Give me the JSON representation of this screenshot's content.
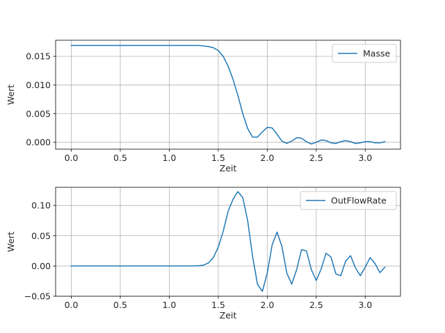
{
  "chart_data": [
    {
      "type": "line",
      "xlabel": "Zeit",
      "ylabel": "Wert",
      "xlim": [
        -0.16,
        3.36
      ],
      "ylim": [
        -0.0012,
        0.0178
      ],
      "xticks": [
        0.0,
        0.5,
        1.0,
        1.5,
        2.0,
        2.5,
        3.0
      ],
      "xtick_labels": [
        "0.0",
        "0.5",
        "1.0",
        "1.5",
        "2.0",
        "2.5",
        "3.0"
      ],
      "yticks": [
        0.0,
        0.005,
        0.01,
        0.015
      ],
      "ytick_labels": [
        "0.000",
        "0.005",
        "0.010",
        "0.015"
      ],
      "grid": true,
      "legend_position": "top-right",
      "series": [
        {
          "name": "Masse",
          "color": "#1f77b4",
          "x": [
            0.0,
            0.05,
            0.1,
            0.15,
            0.2,
            0.25,
            0.3,
            0.35,
            0.4,
            0.45,
            0.5,
            0.55,
            0.6,
            0.65,
            0.7,
            0.75,
            0.8,
            0.85,
            0.9,
            0.95,
            1.0,
            1.05,
            1.1,
            1.15,
            1.2,
            1.25,
            1.3,
            1.35,
            1.4,
            1.45,
            1.5,
            1.55,
            1.6,
            1.65,
            1.7,
            1.75,
            1.8,
            1.85,
            1.9,
            1.95,
            2.0,
            2.05,
            2.1,
            2.15,
            2.2,
            2.25,
            2.3,
            2.35,
            2.4,
            2.45,
            2.5,
            2.55,
            2.6,
            2.65,
            2.7,
            2.75,
            2.8,
            2.85,
            2.9,
            2.95,
            3.0,
            3.05,
            3.1,
            3.15,
            3.2
          ],
          "y": [
            0.0169,
            0.0169,
            0.0169,
            0.0169,
            0.0169,
            0.0169,
            0.0169,
            0.0169,
            0.0169,
            0.0169,
            0.0169,
            0.0169,
            0.0169,
            0.0169,
            0.0169,
            0.0169,
            0.0169,
            0.0169,
            0.0169,
            0.0169,
            0.0169,
            0.0169,
            0.0169,
            0.0169,
            0.0169,
            0.0169,
            0.0169,
            0.0168,
            0.0167,
            0.0165,
            0.016,
            0.015,
            0.0133,
            0.011,
            0.0082,
            0.005,
            0.0024,
            0.0009,
            0.0009,
            0.0018,
            0.0026,
            0.0025,
            0.0014,
            0.0002,
            -0.0002,
            0.0002,
            0.0008,
            0.0007,
            0.0001,
            -0.0003,
            0.0,
            0.0004,
            0.0003,
            -0.0001,
            -0.0002,
            0.0001,
            0.0003,
            0.0001,
            -0.0002,
            -0.0001,
            0.0001,
            0.0001,
            -0.0001,
            -0.0001,
            0.0001
          ]
        }
      ]
    },
    {
      "type": "line",
      "xlabel": "Zeit",
      "ylabel": "Wert",
      "xlim": [
        -0.16,
        3.36
      ],
      "ylim": [
        -0.05,
        0.13
      ],
      "xticks": [
        0.0,
        0.5,
        1.0,
        1.5,
        2.0,
        2.5,
        3.0
      ],
      "xtick_labels": [
        "0.0",
        "0.5",
        "1.0",
        "1.5",
        "2.0",
        "2.5",
        "3.0"
      ],
      "yticks": [
        -0.05,
        0.0,
        0.05,
        0.1
      ],
      "ytick_labels": [
        "−0.05",
        "0.00",
        "0.05",
        "0.10"
      ],
      "grid": true,
      "legend_position": "top-right",
      "series": [
        {
          "name": "OutFlowRate",
          "color": "#1f77b4",
          "x": [
            0.0,
            0.05,
            0.1,
            0.15,
            0.2,
            0.25,
            0.3,
            0.35,
            0.4,
            0.45,
            0.5,
            0.55,
            0.6,
            0.65,
            0.7,
            0.75,
            0.8,
            0.85,
            0.9,
            0.95,
            1.0,
            1.05,
            1.1,
            1.15,
            1.2,
            1.25,
            1.3,
            1.35,
            1.4,
            1.45,
            1.5,
            1.55,
            1.6,
            1.65,
            1.7,
            1.75,
            1.8,
            1.85,
            1.9,
            1.95,
            2.0,
            2.05,
            2.1,
            2.15,
            2.2,
            2.25,
            2.3,
            2.35,
            2.4,
            2.45,
            2.5,
            2.55,
            2.6,
            2.65,
            2.7,
            2.75,
            2.8,
            2.85,
            2.9,
            2.95,
            3.0,
            3.05,
            3.1,
            3.15,
            3.2
          ],
          "y": [
            0.0,
            0.0,
            0.0,
            0.0,
            0.0,
            0.0,
            0.0,
            0.0,
            0.0,
            0.0,
            0.0,
            0.0,
            0.0,
            0.0,
            0.0,
            0.0,
            0.0,
            0.0,
            0.0,
            0.0,
            0.0,
            0.0,
            0.0,
            0.0,
            0.0,
            0.0001,
            0.0005,
            0.0015,
            0.005,
            0.014,
            0.031,
            0.057,
            0.09,
            0.11,
            0.123,
            0.113,
            0.075,
            0.016,
            -0.03,
            -0.042,
            -0.012,
            0.035,
            0.056,
            0.032,
            -0.012,
            -0.03,
            -0.006,
            0.027,
            0.025,
            -0.006,
            -0.024,
            -0.005,
            0.021,
            0.015,
            -0.013,
            -0.016,
            0.008,
            0.017,
            -0.003,
            -0.016,
            -0.002,
            0.014,
            0.004,
            -0.011,
            -0.002
          ]
        }
      ]
    }
  ]
}
